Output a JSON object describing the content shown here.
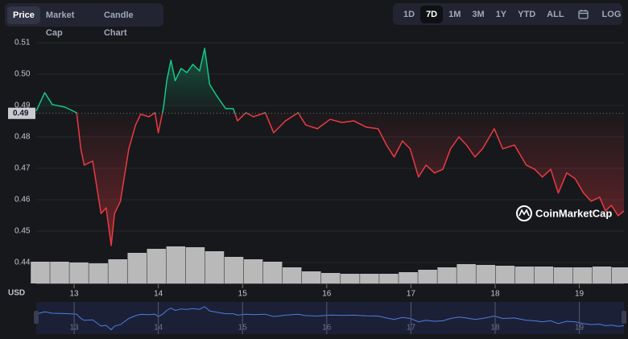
{
  "tabs": [
    "Price",
    "Market Cap",
    "Candle Chart"
  ],
  "ranges": [
    "1D",
    "7D",
    "1M",
    "3M",
    "1Y",
    "YTD",
    "ALL"
  ],
  "log_label": "LOG",
  "watermark": "CoinMarketCap",
  "chart_data": {
    "type": "line",
    "ylabel": "USD",
    "colors": {
      "up": "#16c784",
      "down": "#ea3943",
      "volume": "#d6d6d6",
      "navigator": "#4a7ee0"
    },
    "xlim": [
      12.55,
      19.53
    ],
    "xticks": [
      13,
      14,
      15,
      16,
      17,
      18,
      19
    ],
    "ylim": [
      0.44,
      0.51
    ],
    "yticks": [
      0.44,
      0.45,
      0.46,
      0.47,
      0.48,
      0.49,
      {
        "value": 0.5,
        "label": "0.50"
      },
      0.51
    ],
    "reference_line": {
      "value": 0.4875,
      "label": "0.49"
    },
    "grid": true,
    "x": [
      12.55,
      12.65,
      12.74,
      12.89,
      13.03,
      13.08,
      13.12,
      13.22,
      13.32,
      13.38,
      13.44,
      13.48,
      13.55,
      13.65,
      13.73,
      13.79,
      13.89,
      13.96,
      14.0,
      14.06,
      14.1,
      14.15,
      14.2,
      14.27,
      14.34,
      14.41,
      14.49,
      14.55,
      14.61,
      14.7,
      14.8,
      14.89,
      14.94,
      15.04,
      15.13,
      15.27,
      15.37,
      15.51,
      15.66,
      15.75,
      15.89,
      16.04,
      16.18,
      16.32,
      16.47,
      16.61,
      16.71,
      16.8,
      16.9,
      16.99,
      17.09,
      17.18,
      17.28,
      17.38,
      17.47,
      17.57,
      17.66,
      17.76,
      17.85,
      17.99,
      18.09,
      18.23,
      18.37,
      18.47,
      18.56,
      18.66,
      18.75,
      18.85,
      18.95,
      19.05,
      19.14,
      19.24,
      19.31,
      19.38,
      19.46,
      19.53
    ],
    "values": [
      0.4882,
      0.4941,
      0.4903,
      0.4895,
      0.4877,
      0.4762,
      0.471,
      0.4723,
      0.4556,
      0.4574,
      0.4454,
      0.4556,
      0.4595,
      0.4762,
      0.4838,
      0.4872,
      0.4864,
      0.4877,
      0.4813,
      0.489,
      0.4979,
      0.5044,
      0.4979,
      0.5018,
      0.5005,
      0.5031,
      0.501,
      0.5082,
      0.4967,
      0.4928,
      0.489,
      0.489,
      0.4851,
      0.4877,
      0.4864,
      0.4877,
      0.4813,
      0.4851,
      0.4877,
      0.4838,
      0.4826,
      0.4856,
      0.4846,
      0.4851,
      0.4831,
      0.4826,
      0.4774,
      0.4736,
      0.4787,
      0.4762,
      0.4672,
      0.471,
      0.4685,
      0.4697,
      0.4762,
      0.48,
      0.4774,
      0.4736,
      0.4762,
      0.4826,
      0.4762,
      0.4774,
      0.471,
      0.4697,
      0.4672,
      0.4697,
      0.4621,
      0.4685,
      0.4667,
      0.4621,
      0.4595,
      0.4608,
      0.4564,
      0.4582,
      0.4549,
      0.4564
    ],
    "volume": {
      "x": [
        12.6,
        12.83,
        13.06,
        13.29,
        13.52,
        13.75,
        13.98,
        14.21,
        14.44,
        14.67,
        14.9,
        15.13,
        15.36,
        15.59,
        15.82,
        16.05,
        16.28,
        16.51,
        16.74,
        16.97,
        17.2,
        17.43,
        17.66,
        17.89,
        18.12,
        18.35,
        18.58,
        18.81,
        19.04,
        19.27,
        19.5
      ],
      "values": [
        27,
        27,
        26,
        25,
        30,
        38,
        43,
        46,
        45,
        40,
        33,
        30,
        27,
        20,
        15,
        13,
        12,
        12,
        12,
        14,
        17,
        20,
        24,
        23,
        22,
        21,
        21,
        20,
        20,
        21,
        20
      ]
    }
  }
}
